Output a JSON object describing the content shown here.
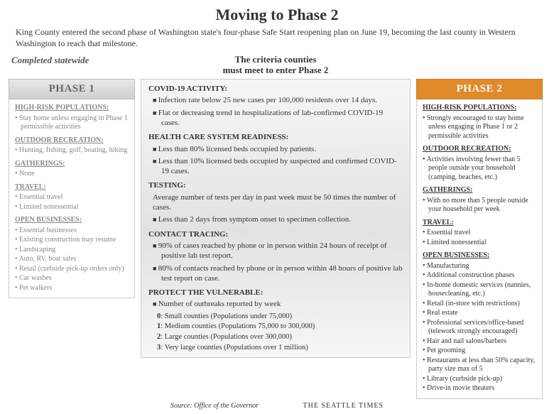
{
  "title": "Moving to Phase 2",
  "subtitle": "King County entered the second phase of Washington state's four-phase Safe Start reopening plan on June 19, becoming the last county in Western Washington to reach that milestone.",
  "completed_label": "Completed statewide",
  "criteria_title_l1": "The criteria counties",
  "criteria_title_l2": "must meet to enter Phase 2",
  "colors": {
    "phase1_header_bg_top": "#e8e8e8",
    "phase1_header_bg_bot": "#cfcfcf",
    "phase1_text": "#878787",
    "phase2_header_bg": "#e08a2a",
    "phase2_header_text": "#ffffff",
    "border": "#cccccc",
    "mid_bg_top": "#f6f6f6",
    "mid_bg_mid": "#e2e2e2"
  },
  "phase1": {
    "header": "PHASE 1",
    "categories": [
      {
        "name": "HIGH-RISK POPULATIONS:",
        "items": [
          "Stay home unless engaging in Phase 1 permissible activities"
        ]
      },
      {
        "name": "OUTDOOR RECREATION:",
        "items": [
          "Hunting, fishing, golf, boating, hiking"
        ]
      },
      {
        "name": "GATHERINGS:",
        "items": [
          "None"
        ]
      },
      {
        "name": "TRAVEL:",
        "items": [
          "Essential travel",
          "Limited nonessential"
        ]
      },
      {
        "name": "OPEN BUSINESSES:",
        "items": [
          "Essential businesses",
          "Existing construction may resume",
          "Landscaping",
          "Auto, RV, boat sales",
          "Retail (curbside pick-up orders only)",
          "Car washes",
          "Pet walkers"
        ]
      }
    ]
  },
  "criteria": [
    {
      "name": "COVID-19 ACTIVITY:",
      "items": [
        "Infection rate below 25 new cases per 100,000 residents over 14 days.",
        "Flat or decreasing trend in hospitalizations of lab-confirmed COVID-19 cases."
      ]
    },
    {
      "name": "HEALTH CARE SYSTEM READINESS:",
      "items": [
        "Less than 80% licensed beds occupied by patients.",
        "Less than 10% licensed beds occupied by suspected and confirmed COVID-19 cases."
      ]
    },
    {
      "name": "TESTING:",
      "items_plain_first": true,
      "items": [
        "Average number of tests per day in past week must be 50 times the number of cases.",
        "Less than 2 days from symptom onset to specimen collection."
      ]
    },
    {
      "name": "CONTACT TRACING:",
      "items": [
        "90% of cases reached by phone or in person within 24 hours of receipt of positive lab test report.",
        "80% of contacts reached by phone or in person within 48 hours of positive lab test report on case."
      ]
    },
    {
      "name": "PROTECT THE VULNERABLE:",
      "items": [
        "Number of outbreaks reported by week"
      ],
      "outbreaks": [
        {
          "n": "0",
          "label": ": Small counties (Populations under 75,000)"
        },
        {
          "n": "1",
          "label": ": Medium counties (Populations 75,000 to 300,000)"
        },
        {
          "n": "2",
          "label": ": Large counties (Populations over 300,000)"
        },
        {
          "n": "3",
          "label": ": Very large counties (Populations over 1 million)"
        }
      ]
    }
  ],
  "phase2": {
    "header": "PHASE 2",
    "categories": [
      {
        "name": "HIGH-RISK POPULATIONS:",
        "items": [
          "Strongly encouraged to stay home unless engaging in Phase 1 or 2 permissible activities"
        ]
      },
      {
        "name": "OUTDOOR RECREATION:",
        "items": [
          "Activities involving fewer than 5 people outside your household (camping, beaches, etc.)"
        ]
      },
      {
        "name": "GATHERINGS:",
        "items": [
          "With no more than 5 people outside your household per week"
        ]
      },
      {
        "name": "TRAVEL:",
        "items": [
          "Essential travel",
          "Limited nonessential"
        ]
      },
      {
        "name": "OPEN BUSINESSES:",
        "items": [
          "Manufacturing",
          "Additional construction phases",
          "In-home domestic services (nannies, housecleaning, etc.)",
          "Retail (in-store with restrictions)",
          "Real estate",
          "Professional services/office-based (telework strongly encouraged)",
          "Hair and nail salons/barbers",
          "Pet grooming",
          "Restaurants at less than 50% capacity, party size max of 5",
          "Library (curbside pick-up)",
          "Drive-in movie theaters"
        ]
      }
    ]
  },
  "source": "Source: Office of the Governor",
  "newspaper": "THE SEATTLE TIMES"
}
